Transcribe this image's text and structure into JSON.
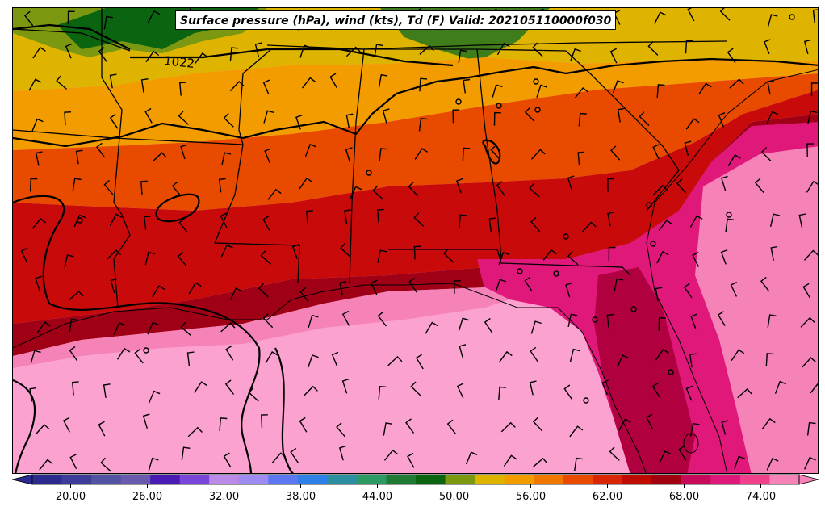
{
  "title": "Surface pressure (hPa), wind (kts), Td (F) Valid: 202105110000f030",
  "isobar_label": "1022",
  "colorbar": {
    "ticks": [
      "20.00",
      "26.00",
      "32.00",
      "38.00",
      "44.00",
      "50.00",
      "56.00",
      "62.00",
      "68.00",
      "74.00"
    ],
    "min": 17,
    "max": 77,
    "step": 2,
    "colors": [
      "#2b2b8f",
      "#3d3d99",
      "#5252a3",
      "#6a5aad",
      "#4a1ab5",
      "#7a45d9",
      "#b98ae6",
      "#9f8cf2",
      "#5b78f2",
      "#2e7fe6",
      "#2c8fa0",
      "#2e9a63",
      "#1f7a33",
      "#0a6410",
      "#7b9810",
      "#dfb400",
      "#f39c00",
      "#f07800",
      "#e84b00",
      "#d92500",
      "#bf0a00",
      "#a00010",
      "#c80a5a",
      "#e0187a",
      "#f0408c",
      "#f583b8"
    ]
  },
  "legend_quantity": "Td (F)",
  "colors": {
    "gulf_pink": "#fca2d0",
    "pink_light": "#f583b8",
    "magenta": "#e0187a",
    "crimson": "#a00015",
    "red": "#c80a0a",
    "red_orange": "#e84b00",
    "orange": "#f39c00",
    "gold": "#dfb400",
    "olive": "#7b9810",
    "green": "#0a6410"
  }
}
